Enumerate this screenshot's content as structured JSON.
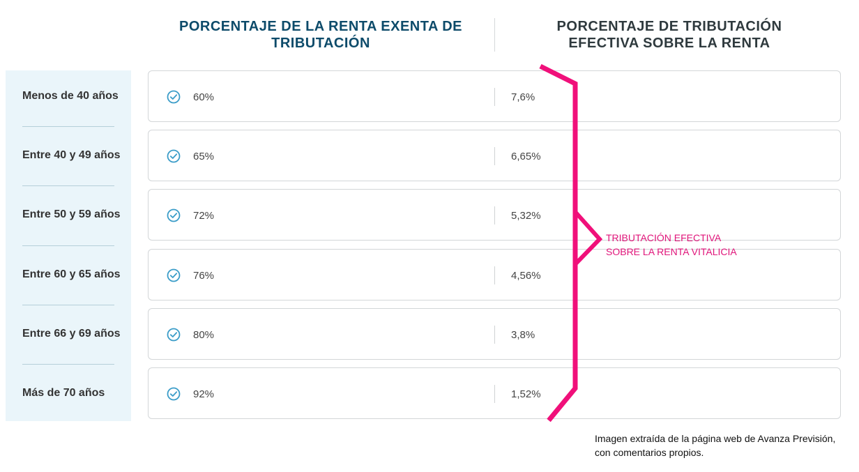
{
  "headers": {
    "left_line1": "PORCENTAJE DE LA RENTA EXENTA DE",
    "left_line2": "TRIBUTACIÓN",
    "right_line1": "PORCENTAJE DE TRIBUTACIÓN",
    "right_line2": "EFECTIVA SOBRE LA RENTA"
  },
  "rows": [
    {
      "age": "Menos de 40 años",
      "exempt": "60%",
      "effective": "7,6%"
    },
    {
      "age": "Entre 40 y 49 años",
      "exempt": "65%",
      "effective": "6,65%"
    },
    {
      "age": "Entre 50 y 59 años",
      "exempt": "72%",
      "effective": "5,32%"
    },
    {
      "age": "Entre 60 y 65 años",
      "exempt": "76%",
      "effective": "4,56%"
    },
    {
      "age": "Entre 66 y 69 años",
      "exempt": "80%",
      "effective": "3,8%"
    },
    {
      "age": "Más de 70 años",
      "exempt": "92%",
      "effective": "1,52%"
    }
  ],
  "annotation": {
    "line1": "TRIBUTACIÓN EFECTIVA",
    "line2": "SOBRE LA RENTA VITALICIA"
  },
  "caption": {
    "line1": "Imagen extraída de la página web de Avanza Previsión,",
    "line2": "con comentarios propios."
  },
  "icons": {
    "row_icon": "check-circle-icon"
  },
  "colors": {
    "left_header": "#0d4b6a",
    "right_header": "#2f3a3e",
    "sidebar_bg": "#eaf5fa",
    "check": "#3a9cc8",
    "annotation": "#e0157a"
  }
}
